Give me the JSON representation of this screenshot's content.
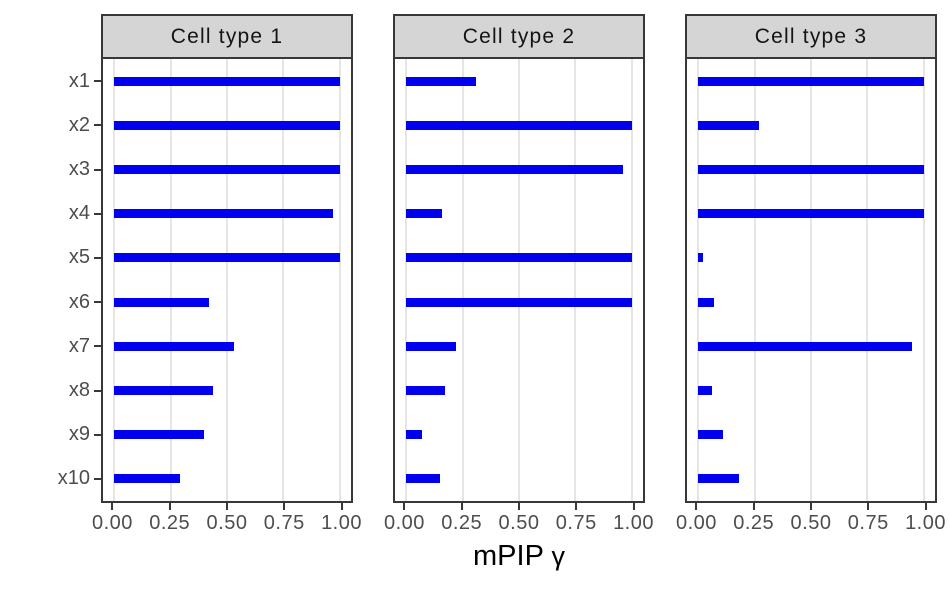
{
  "figure": {
    "colors": {
      "bar": "#0000EE",
      "grid": "#E5E5E5",
      "panel_border": "#383838",
      "strip_bg": "#D5D5D5",
      "tick_text": "#4D4D4D"
    }
  },
  "chart_data": {
    "type": "bar",
    "orientation": "horizontal",
    "title": "",
    "xlabel": "mPIP γ",
    "xlabel_main": "mPIP",
    "xlabel_symbol": "γ",
    "ylabel": "",
    "categories": [
      "x1",
      "x2",
      "x3",
      "x4",
      "x5",
      "x6",
      "x7",
      "x8",
      "x9",
      "x10"
    ],
    "x_tick_labels": [
      "0.00",
      "0.25",
      "0.50",
      "0.75",
      "1.00"
    ],
    "x_tick_values": [
      0,
      0.25,
      0.5,
      0.75,
      1.0
    ],
    "xlim": [
      0,
      1
    ],
    "axis_expansion_mult": 0.05,
    "grid": "major-vertical-only",
    "legend": "none",
    "facets": [
      {
        "title": "Cell type 1",
        "values": [
          1.0,
          1.0,
          1.0,
          0.97,
          1.0,
          0.42,
          0.53,
          0.44,
          0.4,
          0.29
        ]
      },
      {
        "title": "Cell type 2",
        "values": [
          0.31,
          1.0,
          0.96,
          0.16,
          1.0,
          1.0,
          0.22,
          0.17,
          0.07,
          0.15
        ]
      },
      {
        "title": "Cell type 3",
        "values": [
          1.0,
          0.27,
          1.0,
          1.0,
          0.02,
          0.07,
          0.95,
          0.06,
          0.11,
          0.18
        ]
      }
    ]
  }
}
